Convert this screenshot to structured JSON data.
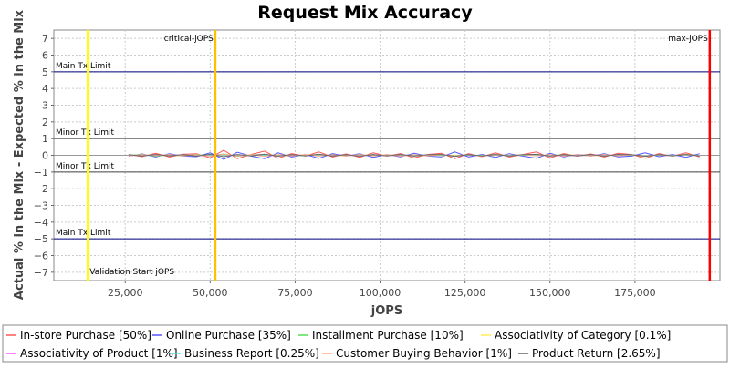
{
  "chart_data": {
    "type": "line",
    "title": "Request Mix Accuracy",
    "xlabel": "jOPS",
    "ylabel": "Actual % in the Mix - Expected % in the Mix",
    "xlim": [
      4000,
      200000
    ],
    "ylim": [
      -7.5,
      7.5
    ],
    "x_ticks": [
      25000,
      50000,
      75000,
      100000,
      125000,
      150000,
      175000
    ],
    "x_tick_labels": [
      "25,000",
      "50,000",
      "75,000",
      "100,000",
      "125,000",
      "150,000",
      "175,000"
    ],
    "y_ticks": [
      7,
      6,
      5,
      4,
      3,
      2,
      1,
      0,
      -1,
      -2,
      -3,
      -4,
      -5,
      -6,
      -7
    ],
    "y_tick_labels": [
      "7",
      "6",
      "5",
      "4",
      "3",
      "2",
      "1",
      "0",
      "−1",
      "−2",
      "−3",
      "−4",
      "−5",
      "−6",
      "−7"
    ],
    "grid": true,
    "legend_position": "bottom",
    "limit_lines": [
      {
        "y": 5,
        "label": "Main Tx Limit",
        "color": "#000080"
      },
      {
        "y": 1,
        "label": "Minor Tx Limit",
        "color": "#444444"
      },
      {
        "y": -1,
        "label": "Minor Tx Limit",
        "color": "#444444"
      },
      {
        "y": -5,
        "label": "Main Tx Limit",
        "color": "#000080"
      }
    ],
    "vertical_markers": [
      {
        "x": 14000,
        "label": "Validation Start jOPS",
        "color": "#ffff00"
      },
      {
        "x": 51500,
        "label": "critical-jOPS",
        "color": "#ffc000"
      },
      {
        "x": 197000,
        "label": "max-jOPS",
        "color": "#ff0000"
      }
    ],
    "x": [
      26000,
      30000,
      34000,
      38000,
      42000,
      46000,
      50000,
      54000,
      58000,
      62000,
      66000,
      70000,
      74000,
      78000,
      82000,
      86000,
      90000,
      94000,
      98000,
      102000,
      106000,
      110000,
      114000,
      118000,
      122000,
      126000,
      130000,
      134000,
      138000,
      142000,
      146000,
      150000,
      154000,
      158000,
      162000,
      166000,
      170000,
      174000,
      178000,
      182000,
      186000,
      190000,
      194000
    ],
    "series": [
      {
        "name": "In-store Purchase [50%]",
        "color": "#ff5555",
        "values": [
          0.05,
          -0.08,
          0.12,
          -0.1,
          0.06,
          0.1,
          -0.15,
          0.3,
          -0.2,
          0.05,
          0.25,
          -0.18,
          0.1,
          -0.05,
          0.2,
          -0.1,
          0.08,
          -0.12,
          0.15,
          -0.05,
          0.1,
          -0.15,
          0.05,
          0.12,
          -0.2,
          0.1,
          -0.08,
          0.15,
          -0.1,
          0.05,
          0.2,
          -0.15,
          0.1,
          -0.05,
          0.08,
          -0.1,
          0.12,
          0.05,
          -0.18,
          0.1,
          -0.05,
          0.15,
          -0.1
        ]
      },
      {
        "name": "Online Purchase [35%]",
        "color": "#5555ff",
        "values": [
          -0.05,
          0.08,
          -0.1,
          0.1,
          -0.05,
          -0.08,
          0.15,
          -0.25,
          0.18,
          -0.05,
          -0.2,
          0.15,
          -0.1,
          0.05,
          -0.18,
          0.1,
          -0.05,
          0.1,
          -0.12,
          0.05,
          -0.1,
          0.12,
          -0.05,
          -0.1,
          0.2,
          -0.1,
          0.05,
          -0.12,
          0.1,
          -0.05,
          -0.18,
          0.12,
          -0.1,
          0.05,
          -0.05,
          0.1,
          -0.1,
          -0.05,
          0.15,
          -0.08,
          0.05,
          -0.12,
          0.1
        ]
      },
      {
        "name": "Installment Purchase [10%]",
        "color": "#55dd55",
        "values": [
          0.0,
          0.05,
          -0.05,
          0.02,
          -0.03,
          0.05,
          -0.04,
          0.08,
          -0.06,
          0.03,
          0.05,
          -0.05,
          0.02,
          -0.03,
          0.06,
          -0.04,
          0.02,
          -0.03,
          0.05,
          -0.02,
          0.03,
          -0.05,
          0.02,
          0.04,
          -0.06,
          0.03,
          -0.02,
          0.05,
          -0.03,
          0.02,
          0.05,
          -0.04,
          0.03,
          -0.02,
          0.03,
          -0.03,
          0.04,
          0.02,
          -0.05,
          0.03,
          -0.02,
          0.04,
          -0.03
        ]
      },
      {
        "name": "Associativity of Category [0.1%]",
        "color": "#ffee55",
        "values": [
          0.0,
          0.01,
          -0.01,
          0.0,
          0.01,
          -0.01,
          0.0,
          0.01,
          0.0,
          -0.01,
          0.01,
          0.0,
          -0.01,
          0.0,
          0.01,
          0.0,
          -0.01,
          0.01,
          0.0,
          0.0,
          -0.01,
          0.01,
          0.0,
          -0.01,
          0.01,
          0.0,
          0.0,
          -0.01,
          0.01,
          0.0,
          -0.01,
          0.0,
          0.01,
          0.0,
          -0.01,
          0.0,
          0.01,
          0.0,
          -0.01,
          0.01,
          0.0,
          0.0,
          -0.01
        ]
      },
      {
        "name": "Associativity of Product [1%]",
        "color": "#ff55ff",
        "values": [
          0.02,
          -0.03,
          0.04,
          -0.02,
          0.03,
          -0.04,
          0.02,
          0.05,
          -0.03,
          0.02,
          0.04,
          -0.05,
          0.03,
          -0.02,
          0.04,
          -0.03,
          0.02,
          -0.04,
          0.03,
          -0.02,
          0.04,
          -0.03,
          0.02,
          0.03,
          -0.05,
          0.02,
          -0.03,
          0.04,
          -0.02,
          0.03,
          0.04,
          -0.03,
          0.02,
          -0.04,
          0.03,
          -0.02,
          0.04,
          0.02,
          -0.03,
          0.03,
          -0.02,
          0.04,
          -0.03
        ]
      },
      {
        "name": "Business Report [0.25%]",
        "color": "#55dddd",
        "values": [
          0.01,
          -0.02,
          0.02,
          -0.01,
          0.01,
          -0.02,
          0.01,
          0.02,
          -0.01,
          0.01,
          0.02,
          -0.02,
          0.01,
          -0.01,
          0.02,
          -0.01,
          0.01,
          -0.02,
          0.01,
          -0.01,
          0.02,
          -0.01,
          0.01,
          0.02,
          -0.02,
          0.01,
          -0.01,
          0.02,
          -0.01,
          0.01,
          0.02,
          -0.01,
          0.01,
          -0.02,
          0.01,
          -0.01,
          0.02,
          0.01,
          -0.02,
          0.01,
          -0.01,
          0.02,
          -0.01
        ]
      },
      {
        "name": "Customer Buying Behavior [1%]",
        "color": "#ffaa88",
        "values": [
          -0.03,
          0.04,
          -0.02,
          0.05,
          -0.04,
          0.03,
          -0.05,
          0.06,
          -0.03,
          0.04,
          -0.06,
          0.05,
          -0.03,
          0.04,
          -0.05,
          0.03,
          -0.04,
          0.05,
          -0.03,
          0.04,
          -0.05,
          0.03,
          -0.04,
          0.05,
          -0.03,
          0.04,
          -0.05,
          0.03,
          -0.04,
          0.05,
          -0.03,
          0.04,
          -0.05,
          0.03,
          -0.04,
          0.05,
          -0.03,
          0.04,
          -0.05,
          0.03,
          -0.04,
          0.05,
          -0.03
        ]
      },
      {
        "name": "Product Return [2.65%]",
        "color": "#666666",
        "values": [
          0.03,
          -0.04,
          0.05,
          -0.03,
          0.04,
          -0.05,
          0.06,
          -0.08,
          0.05,
          -0.04,
          0.07,
          -0.05,
          0.04,
          -0.03,
          0.06,
          -0.04,
          0.03,
          -0.05,
          0.04,
          -0.03,
          0.05,
          -0.04,
          0.03,
          0.05,
          -0.06,
          0.04,
          -0.03,
          0.05,
          -0.04,
          0.03,
          0.06,
          -0.05,
          0.04,
          -0.03,
          0.04,
          -0.05,
          0.05,
          0.03,
          -0.06,
          0.04,
          -0.03,
          0.05,
          -0.04
        ]
      }
    ]
  }
}
